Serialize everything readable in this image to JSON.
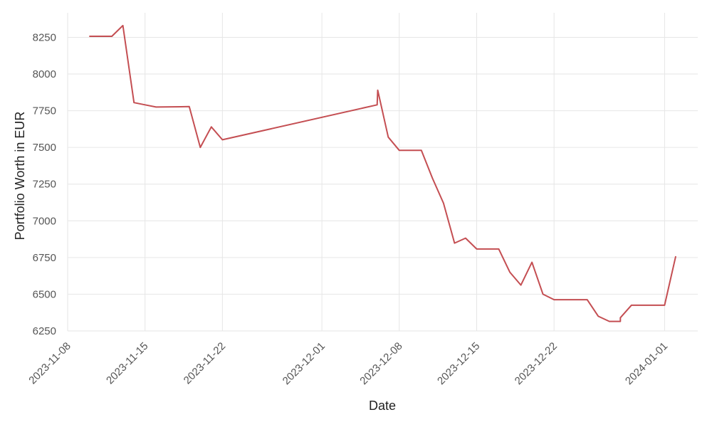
{
  "chart_data": {
    "type": "line",
    "title": "",
    "xlabel": "Date",
    "ylabel": "Portfolio Worth in EUR",
    "x_ticks": [
      "2023-11-08",
      "2023-11-15",
      "2023-11-22",
      "2023-12-01",
      "2023-12-08",
      "2023-12-15",
      "2023-12-22",
      "2024-01-01"
    ],
    "y_ticks": [
      6250,
      6500,
      6750,
      7000,
      7250,
      7500,
      7750,
      8000,
      8250
    ],
    "xlim": [
      "2023-11-08",
      "2024-01-04"
    ],
    "ylim": [
      6250,
      8320
    ],
    "grid": true,
    "line_color": "#c44e52",
    "series": [
      {
        "points": [
          [
            "2023-11-10",
            8257
          ],
          [
            "2023-11-11",
            8257
          ],
          [
            "2023-11-12",
            8257
          ],
          [
            "2023-11-13",
            8330
          ],
          [
            "2023-11-14",
            7805
          ],
          [
            "2023-11-15",
            7790
          ],
          [
            "2023-11-16",
            7775
          ],
          [
            "2023-11-19",
            7778
          ],
          [
            "2023-11-20",
            7500
          ],
          [
            "2023-11-21",
            7640
          ],
          [
            "2023-11-22",
            7552
          ],
          [
            "2023-12-06",
            7790
          ],
          [
            "2023-12-06T01:12",
            7890
          ],
          [
            "2023-12-07",
            7570
          ],
          [
            "2023-12-08",
            7480
          ],
          [
            "2023-12-10",
            7480
          ],
          [
            "2023-12-11",
            7290
          ],
          [
            "2023-12-12",
            7120
          ],
          [
            "2023-12-13",
            6848
          ],
          [
            "2023-12-14",
            6882
          ],
          [
            "2023-12-15",
            6808
          ],
          [
            "2023-12-17",
            6808
          ],
          [
            "2023-12-18",
            6650
          ],
          [
            "2023-12-19",
            6562
          ],
          [
            "2023-12-20",
            6718
          ],
          [
            "2023-12-21",
            6500
          ],
          [
            "2023-12-22",
            6463
          ],
          [
            "2023-12-25",
            6463
          ],
          [
            "2023-12-26",
            6350
          ],
          [
            "2023-12-27",
            6315
          ],
          [
            "2023-12-28",
            6315
          ],
          [
            "2023-12-28T00:01",
            6340
          ],
          [
            "2023-12-29",
            6425
          ],
          [
            "2024-01-01",
            6425
          ],
          [
            "2024-01-02",
            6755
          ]
        ]
      }
    ]
  }
}
